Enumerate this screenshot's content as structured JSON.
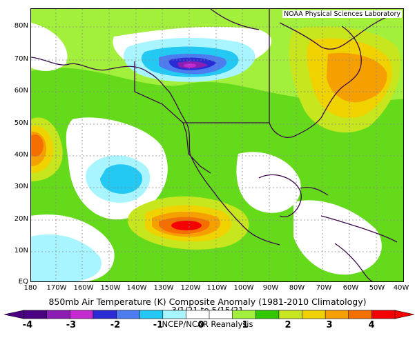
{
  "credit": "NOAA Physical Sciences Laboratory",
  "caption": {
    "title": "850mb Air Temperature (K) Composite Anomaly (1981-2010 Climatology)",
    "dates": "3/1/21 to 5/15/21",
    "source": "NCEP/NCAR Reanalysis"
  },
  "lat_labels": [
    "80N",
    "70N",
    "60N",
    "50N",
    "40N",
    "30N",
    "20N",
    "10N",
    "EQ"
  ],
  "lon_labels": [
    "180",
    "170W",
    "160W",
    "150W",
    "140W",
    "130W",
    "120W",
    "110W",
    "100W",
    "90W",
    "80W",
    "70W",
    "60W",
    "50W",
    "40W"
  ],
  "colorbar": {
    "tick_labels": [
      "-4",
      "-3",
      "-2",
      "-1",
      "0",
      "1",
      "2",
      "3",
      "4"
    ],
    "colors": [
      "#4b0082",
      "#8b1fb4",
      "#c22bd0",
      "#2b2bd6",
      "#4c7cf0",
      "#23c8f3",
      "#a9f5ff",
      "#ffffff",
      "#ffffff",
      "#a2f03c",
      "#33c800",
      "#c8e61e",
      "#f0d200",
      "#f5a000",
      "#f56e00",
      "#f50000"
    ]
  },
  "anomaly_features": [
    {
      "label": "cold anomaly",
      "region": "northern Canada / Yukon",
      "value_K": -2.5
    },
    {
      "label": "cold anomaly",
      "region": "Pacific west of California",
      "value_K": -1.5
    },
    {
      "label": "warm anomaly",
      "region": "eastern Pacific southwest of Mexico",
      "value_K": 3.5
    },
    {
      "label": "warm anomaly",
      "region": "Labrador / Quebec",
      "value_K": 2.5
    },
    {
      "label": "warm anomaly",
      "region": "west Pacific near 180",
      "value_K": 3
    }
  ]
}
